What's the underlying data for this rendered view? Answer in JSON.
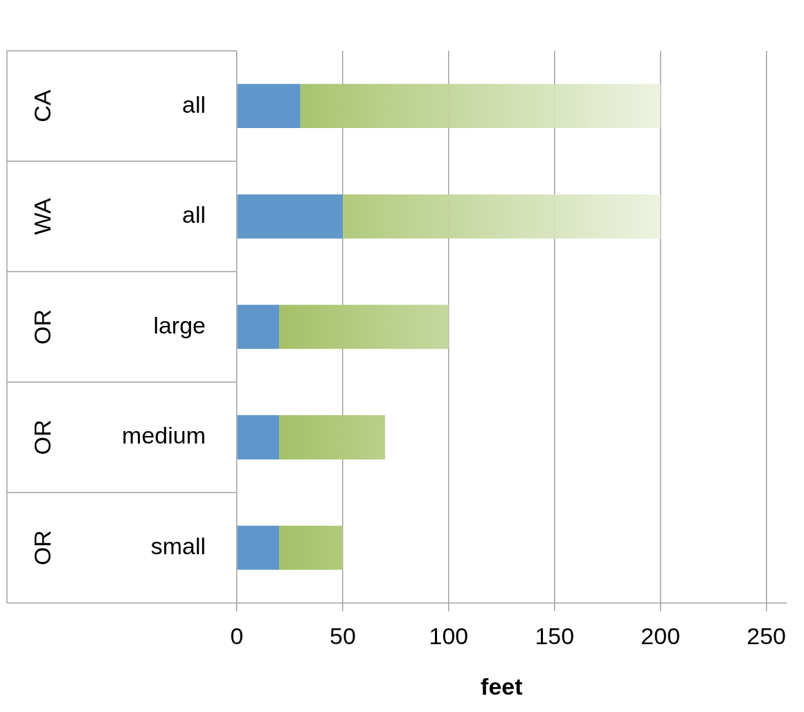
{
  "chart_data": {
    "type": "bar",
    "orientation": "horizontal",
    "stacked": true,
    "xlabel": "feet",
    "categories": [
      "all",
      "all",
      "large",
      "medium",
      "small"
    ],
    "annotations": [
      "CA",
      "WA",
      "OR",
      "OR",
      "OR"
    ],
    "series": [
      {
        "color": "#6096c9",
        "values": [
          30,
          50,
          20,
          20,
          20
        ]
      },
      {
        "color": "#9bbb59",
        "values": [
          170,
          150,
          80,
          50,
          30
        ]
      }
    ],
    "xlim": [
      0,
      250
    ],
    "xticks": [
      0,
      50,
      100,
      150,
      200,
      250
    ],
    "grid": "x",
    "legend": false
  }
}
